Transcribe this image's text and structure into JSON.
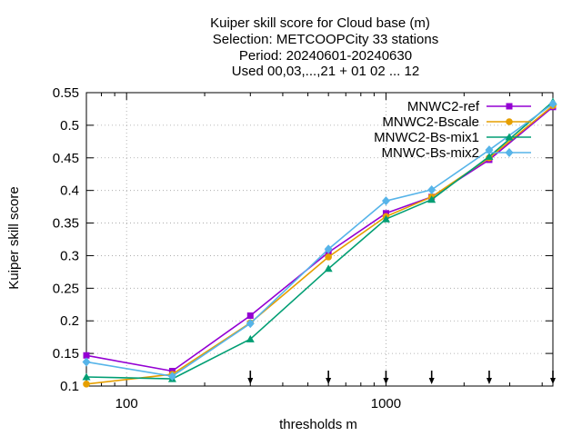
{
  "chart_data": {
    "type": "line",
    "title_lines": [
      "Kuiper skill score  for Cloud base (m)",
      "Selection: METCOOPCity      33 stations",
      "Period: 20240601-20240630",
      "Used 00,03,...,21 + 01 02 ... 12"
    ],
    "xlabel": "thresholds m",
    "ylabel": "Kuiper skill score",
    "x_scale": "log",
    "xlim": [
      70,
      4400
    ],
    "ylim": [
      0.1,
      0.55
    ],
    "grid": true,
    "legend_position": "top-right",
    "x_ticks": [
      100,
      1000
    ],
    "x_tick_labels": [
      "100",
      "1000"
    ],
    "y_ticks": [
      0.1,
      0.15,
      0.2,
      0.25,
      0.3,
      0.35,
      0.4,
      0.45,
      0.5,
      0.55
    ],
    "y_tick_labels": [
      "0.1",
      "0.15",
      "0.2",
      "0.25",
      "0.3",
      "0.35",
      "0.4",
      "0.45",
      "0.5",
      "0.55"
    ],
    "threshold_markers": [
      300,
      600,
      1000,
      1500,
      2500,
      4400
    ],
    "x": [
      70,
      150,
      300,
      600,
      1000,
      1500,
      2500,
      4400
    ],
    "series": [
      {
        "name": "MNWC2-ref",
        "color": "#9400d3",
        "marker": "filled-square",
        "values": [
          0.147,
          0.123,
          0.208,
          0.305,
          0.365,
          0.39,
          0.447,
          0.528
        ]
      },
      {
        "name": "MNWC2-Bscale",
        "color": "#e69f00",
        "marker": "filled-circle",
        "values": [
          0.103,
          0.118,
          0.197,
          0.298,
          0.36,
          0.39,
          0.45,
          0.53
        ]
      },
      {
        "name": "MNWC2-Bs-mix1",
        "color": "#009e73",
        "marker": "filled-triangle",
        "values": [
          0.114,
          0.111,
          0.172,
          0.28,
          0.356,
          0.386,
          0.452,
          0.536
        ]
      },
      {
        "name": "MNWC-Bs-mix2",
        "color": "#56b4e9",
        "marker": "filled-diamond",
        "values": [
          0.137,
          0.115,
          0.196,
          0.31,
          0.384,
          0.401,
          0.462,
          0.533
        ]
      }
    ]
  }
}
